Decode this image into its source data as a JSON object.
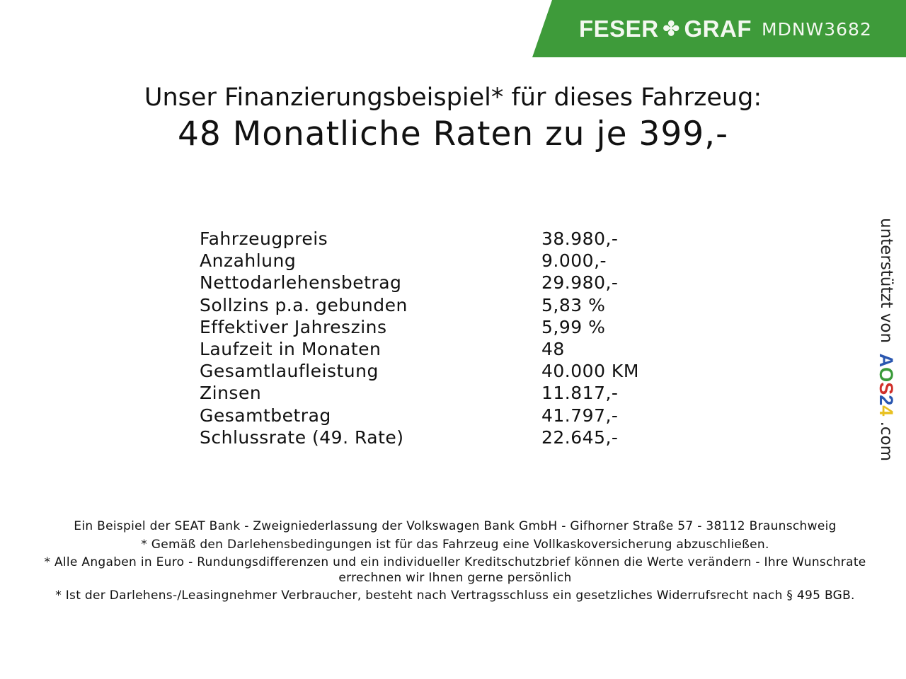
{
  "header": {
    "brand_left": "FESER",
    "brand_right": "GRAF",
    "code": "MDNW3682",
    "color": "#3e9b3a"
  },
  "title": "Unser Finanzierungsbeispiel* für dieses Fahrzeug:",
  "subtitle": "48 Monatliche Raten zu je 399,-",
  "rows": [
    {
      "label": "Fahrzeugpreis",
      "value": "38.980,-"
    },
    {
      "label": "Anzahlung",
      "value": "9.000,-"
    },
    {
      "label": "Nettodarlehensbetrag",
      "value": "29.980,-"
    },
    {
      "label": "Sollzins p.a. gebunden",
      "value": "5,83 %"
    },
    {
      "label": "Effektiver Jahreszins",
      "value": "5,99 %"
    },
    {
      "label": "Laufzeit in Monaten",
      "value": "48"
    },
    {
      "label": "Gesamtlaufleistung",
      "value": "40.000 KM"
    },
    {
      "label": "Zinsen",
      "value": "11.817,-"
    },
    {
      "label": "Gesamtbetrag",
      "value": "41.797,-"
    },
    {
      "label": "Schlussrate (49. Rate)",
      "value": "22.645,-"
    }
  ],
  "side": {
    "text": "unterstützt von",
    "logo": [
      "A",
      "O",
      "S",
      "2",
      "4"
    ],
    "suffix": ".com"
  },
  "footer": [
    "Ein Beispiel der SEAT Bank - Zweigniederlassung der Volkswagen Bank GmbH - Gifhorner Straße 57 - 38112 Braunschweig",
    "* Gemäß den Darlehensbedingungen ist für das Fahrzeug eine Vollkaskoversicherung abzuschließen.",
    "* Alle Angaben in Euro - Rundungsdifferenzen und ein individueller Kreditschutzbrief können die Werte verändern - Ihre Wunschrate errechnen wir Ihnen gerne persönlich",
    "* Ist der Darlehens-/Leasingnehmer Verbraucher, besteht nach Vertragsschluss ein gesetzliches Widerrufsrecht nach § 495 BGB."
  ]
}
